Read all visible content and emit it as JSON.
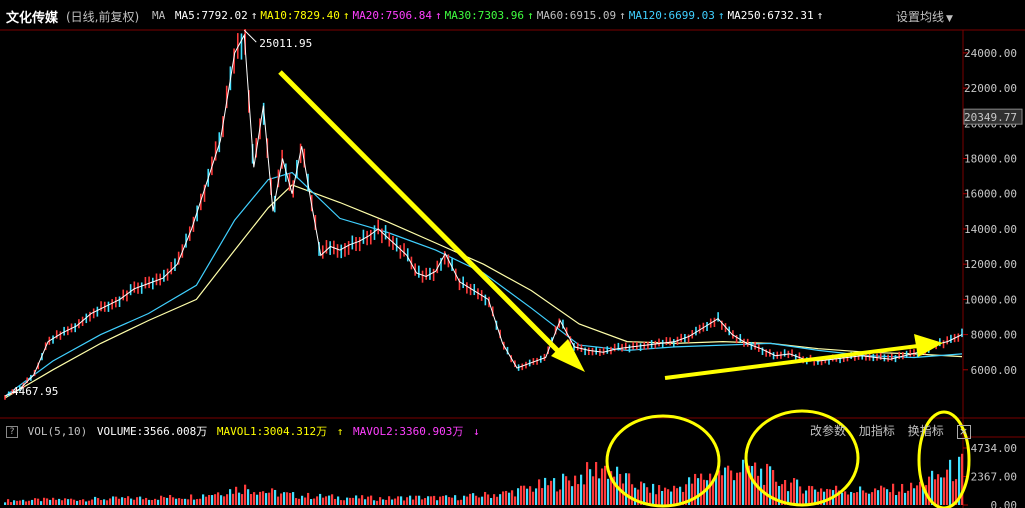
{
  "header": {
    "title": "文化传媒",
    "subtitle": "(日线,前复权)",
    "ma_prefix": "MA",
    "ma_items": [
      {
        "label": "MA5:7792.02",
        "color": "#ffffff"
      },
      {
        "label": "MA10:7829.40",
        "color": "#ffff00"
      },
      {
        "label": "MA20:7506.84",
        "color": "#ff40ff"
      },
      {
        "label": "MA30:7303.96",
        "color": "#40ff40"
      },
      {
        "label": "MA60:6915.09",
        "color": "#c0c0c0"
      },
      {
        "label": "MA120:6699.03",
        "color": "#40d0ff"
      },
      {
        "label": "MA250:6732.31",
        "color": "#ffffff"
      }
    ],
    "settings_label": "设置均线"
  },
  "volume_header": {
    "indicator": "VOL(5,10)",
    "volume_label": "VOLUME:3566.008万",
    "mavol1_label": "MAVOL1:3004.312万",
    "mavol2_label": "MAVOL2:3360.903万",
    "buttons": [
      "改参数",
      "加指标",
      "换指标"
    ]
  },
  "colors": {
    "up": "#ff3b3b",
    "down": "#40e0ff",
    "annotation": "#ffff00",
    "ma250": "#ffffaa",
    "ma120": "#40d0ff",
    "ma5": "#ffffff"
  },
  "chart_data": {
    "type": "line",
    "price_axis": {
      "ticks": [
        "24000.00",
        "22000.00",
        "20000.00",
        "18000.00",
        "16000.00",
        "14000.00",
        "12000.00",
        "10000.00",
        "8000.00",
        "6000.00"
      ],
      "ylim": [
        4000,
        25300
      ],
      "current_price": "20349.77"
    },
    "peak_label": "25011.95",
    "start_label": "4467.95",
    "price_series": {
      "name": "文化传媒",
      "x": [
        0,
        3,
        6,
        9,
        12,
        15,
        18,
        21,
        24,
        27,
        30,
        33,
        36,
        39,
        42,
        45,
        48,
        50,
        52,
        54,
        56,
        58,
        60,
        62,
        64,
        66,
        68,
        70,
        72,
        74,
        76,
        78,
        80,
        82,
        84,
        86,
        88,
        90,
        92,
        95,
        98,
        101,
        104,
        107,
        110,
        113,
        116,
        119,
        122,
        125,
        128,
        131,
        134,
        137,
        140,
        143,
        146,
        149,
        152,
        155,
        158,
        161,
        164,
        167,
        170,
        173,
        176,
        179,
        182,
        185,
        188,
        191,
        194,
        197,
        200
      ],
      "values": [
        4500,
        4900,
        5700,
        7600,
        8100,
        8500,
        9200,
        9600,
        10000,
        10600,
        10900,
        11200,
        12000,
        14000,
        16500,
        19000,
        24000,
        25011,
        17500,
        21000,
        15000,
        18000,
        16000,
        18700,
        15500,
        12500,
        13000,
        12800,
        13100,
        13300,
        13600,
        14000,
        13500,
        13000,
        12500,
        11500,
        11300,
        11600,
        12600,
        11000,
        10500,
        10000,
        7500,
        6100,
        6400,
        6700,
        8800,
        7300,
        7100,
        7000,
        7200,
        7300,
        7400,
        7500,
        7600,
        7900,
        8400,
        8900,
        8000,
        7500,
        7200,
        6800,
        6900,
        6600,
        6500,
        6600,
        6700,
        6800,
        6700,
        6600,
        6800,
        7000,
        7400,
        7600,
        8000
      ]
    },
    "ma250_series": {
      "x": [
        0,
        10,
        20,
        30,
        40,
        48,
        55,
        60,
        70,
        80,
        90,
        100,
        110,
        120,
        130,
        140,
        150,
        160,
        170,
        180,
        190,
        200
      ],
      "values": [
        4400,
        6000,
        7500,
        8800,
        10000,
        12800,
        15200,
        16500,
        15500,
        14400,
        13200,
        12000,
        10500,
        8600,
        7600,
        7500,
        7600,
        7500,
        7200,
        7000,
        6900,
        6750
      ]
    },
    "ma120_series": {
      "x": [
        0,
        10,
        20,
        30,
        40,
        48,
        55,
        60,
        70,
        80,
        90,
        100,
        110,
        120,
        130,
        140,
        150,
        160,
        170,
        180,
        190,
        200
      ],
      "values": [
        4500,
        6500,
        8000,
        9200,
        10800,
        14500,
        16800,
        17200,
        14600,
        13800,
        12800,
        11500,
        9500,
        7400,
        7100,
        7300,
        7400,
        7500,
        7100,
        6800,
        6700,
        6900
      ]
    },
    "volume_axis": {
      "ticks": [
        "4734.00",
        "2367.00",
        "0.00"
      ],
      "ylim": [
        0,
        4734
      ]
    },
    "volume_series": {
      "x": [
        0,
        10,
        20,
        30,
        40,
        45,
        50,
        55,
        60,
        65,
        70,
        75,
        80,
        85,
        90,
        95,
        100,
        105,
        110,
        115,
        120,
        125,
        130,
        135,
        140,
        145,
        150,
        155,
        160,
        165,
        170,
        175,
        180,
        185,
        190,
        195,
        200
      ],
      "values": [
        400,
        500,
        550,
        650,
        800,
        1200,
        1600,
        1200,
        900,
        800,
        700,
        650,
        600,
        700,
        650,
        700,
        900,
        1100,
        1600,
        2000,
        2600,
        3500,
        2200,
        1400,
        1500,
        2400,
        3000,
        3600,
        2600,
        1800,
        1500,
        1400,
        1300,
        1400,
        1600,
        2600,
        3566
      ]
    }
  }
}
